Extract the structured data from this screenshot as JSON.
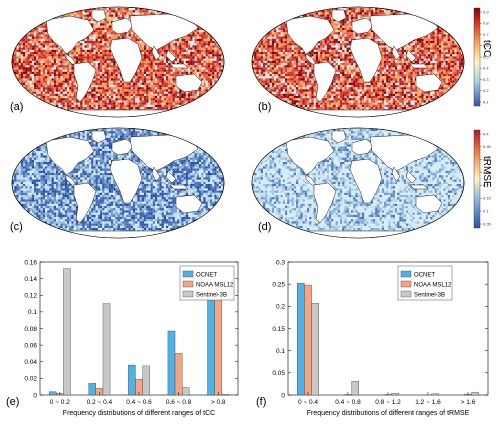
{
  "maps": {
    "panel_labels": [
      "(a)",
      "(b)",
      "(c)",
      "(d)"
    ],
    "colorbar_top": {
      "title": "tCC",
      "ticks": [
        "0.9",
        "0.8",
        "0.7",
        "0.6",
        "0.5",
        "0.4",
        "0.3",
        "0.2",
        "0.1"
      ]
    },
    "colorbar_bottom": {
      "title": "tRMSE",
      "ticks": [
        "0.4",
        "0.35",
        "0.3",
        "0.25",
        "0.2",
        "0.15",
        "0.1",
        "0.05"
      ]
    },
    "colors": {
      "ocean_bg": "#d7eef6",
      "land": "#ffffff",
      "red": "#c8281e",
      "blue": "#3a5fae"
    }
  },
  "chart_data": [
    {
      "type": "bar",
      "panel_label": "(e)",
      "categories": [
        "0 ~ 0.2",
        "0.2 ~ 0.4",
        "0.4 ~ 0.6",
        "0.6 ~ 0.8",
        "> 0.8"
      ],
      "series": [
        {
          "name": "OCNET",
          "values": [
            0.004,
            0.014,
            0.036,
            0.077,
            0.117
          ],
          "color": "#4db3e6"
        },
        {
          "name": "NOAA MSL12",
          "values": [
            0.002,
            0.008,
            0.019,
            0.05,
            0.138
          ],
          "color": "#f4a582"
        },
        {
          "name": "Sentinel-3B",
          "values": [
            0.152,
            0.11,
            0.035,
            0.009,
            0.001
          ],
          "color": "#c8c8c8"
        }
      ],
      "xlabel": "Frequency distributions of different ranges of tCC",
      "ylim": [
        0,
        0.16
      ],
      "yticks": [
        "0",
        "0.02",
        "0.04",
        "0.06",
        "0.08",
        "0.1",
        "0.12",
        "0.14",
        "0.16"
      ],
      "legend": "top-right"
    },
    {
      "type": "bar",
      "panel_label": "(f)",
      "categories": [
        "0 ~ 0.4",
        "0.4 ~ 0.8",
        "0.8 ~ 1.2",
        "1.2 ~ 1.6",
        "> 1.6"
      ],
      "series": [
        {
          "name": "OCNET",
          "values": [
            0.252,
            0,
            0,
            0,
            0
          ],
          "color": "#4db3e6"
        },
        {
          "name": "NOAA MSL12",
          "values": [
            0.248,
            0.001,
            0.001,
            0,
            0.002
          ],
          "color": "#f4a582"
        },
        {
          "name": "Sentinel-3B",
          "values": [
            0.207,
            0.031,
            0.004,
            0.003,
            0.006
          ],
          "color": "#c8c8c8"
        }
      ],
      "xlabel": "Frequency distributions of different ranges of tRMSE",
      "ylim": [
        0,
        0.3
      ],
      "yticks": [
        "0",
        "0.05",
        "0.1",
        "0.15",
        "0.2",
        "0.25",
        "0.3"
      ],
      "legend": "top-left"
    }
  ]
}
